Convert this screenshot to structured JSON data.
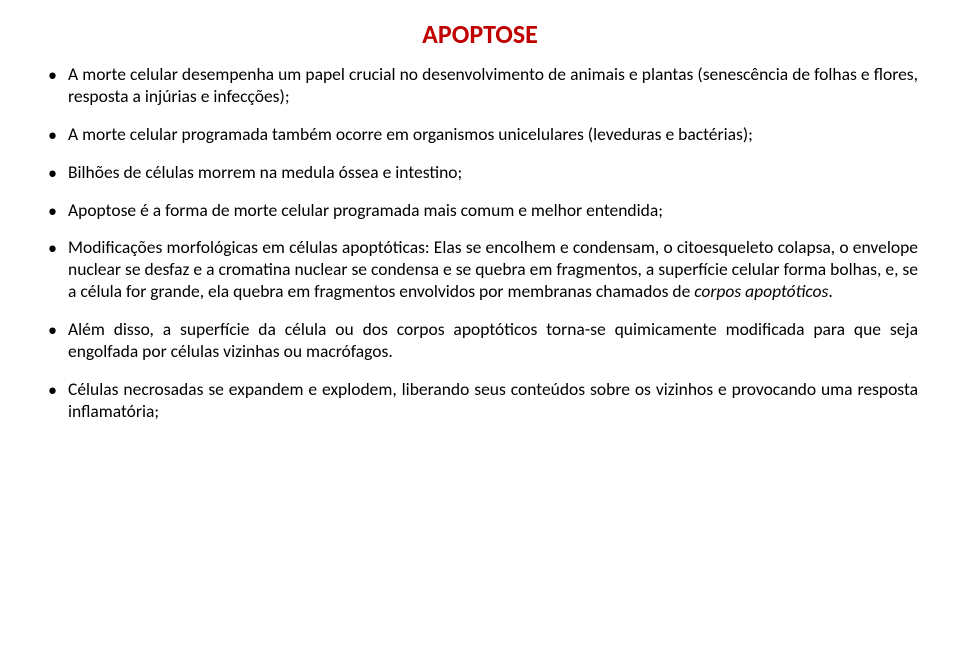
{
  "title": {
    "text": "APOPTOSE",
    "color": "#c00000",
    "fontsize": 26
  },
  "body": {
    "fontsize": 17.5,
    "color": "#000000",
    "italic_term": "corpos apoptóticos"
  },
  "bullets": [
    "A morte celular desempenha um papel crucial no desenvolvimento de animais e plantas (senescência de folhas e flores, resposta a injúrias e infecções);",
    "A morte celular programada também ocorre em organismos unicelulares (leveduras e bactérias);",
    "Bilhões de células morrem na medula óssea e intestino;",
    "Apoptose é a forma de morte celular programada mais comum e melhor entendida;",
    "Modificações morfológicas em células apoptóticas: Elas se encolhem e condensam, o citoesqueleto colapsa, o envelope nuclear se desfaz e a cromatina nuclear se condensa e se quebra em fragmentos, a superfície celular forma bolhas, e, se a célula for grande, ela quebra em fragmentos envolvidos por membranas chamados de ",
    "Além disso, a superfície da célula ou dos corpos apoptóticos torna-se quimicamente modificada para que seja engolfada por células vizinhas ou macrófagos.",
    "Células necrosadas se expandem e explodem, liberando seus conteúdos sobre os vizinhos e provocando uma resposta inflamatória;"
  ]
}
